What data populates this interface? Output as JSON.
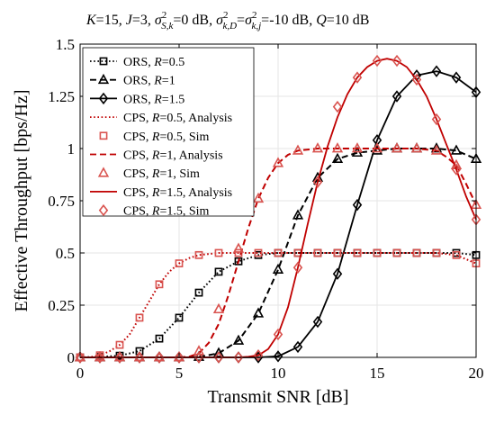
{
  "chart_data": {
    "type": "line",
    "title": "K=15, J=3, σ²S,k=0 dB, σ²k,D=σ²k,j=-10 dB, Q=10 dB",
    "title_parts": {
      "p1_italic": "K",
      "p1": "=15, ",
      "p2_italic": "J",
      "p2": "=3, ",
      "sigma": "σ",
      "sup2": "2",
      "sub1": "S,k",
      "p3": "=0 dB, ",
      "sub2": "k,D",
      "p4": "=",
      "sub3": "k,j",
      "p5": "=-10 dB, ",
      "p6_italic": "Q",
      "p6": "=10 dB"
    },
    "xlabel": "Transmit SNR [dB]",
    "ylabel": "Effective Throughput [bps/Hz]",
    "xlim": [
      0,
      20
    ],
    "ylim": [
      0,
      1.5
    ],
    "xticks": [
      "0",
      "5",
      "10",
      "15",
      "20"
    ],
    "yticks": [
      "0",
      "0.25",
      "0.5",
      "0.75",
      "1",
      "1.25",
      "1.5"
    ],
    "grid": true,
    "legend_position": "top-left",
    "series": [
      {
        "name": "ORS, R=0.5",
        "label_parts": [
          "ORS, ",
          "R",
          "=0.5"
        ],
        "color": "#000000",
        "line": "dotted",
        "marker": "square",
        "x": [
          0,
          1,
          2,
          3,
          4,
          5,
          6,
          7,
          8,
          9,
          10,
          11,
          12,
          13,
          14,
          15,
          16,
          17,
          18,
          19,
          20
        ],
        "y": [
          0,
          0.002,
          0.008,
          0.03,
          0.09,
          0.19,
          0.31,
          0.41,
          0.46,
          0.49,
          0.5,
          0.5,
          0.5,
          0.5,
          0.5,
          0.5,
          0.5,
          0.5,
          0.5,
          0.5,
          0.49
        ]
      },
      {
        "name": "ORS, R=1",
        "label_parts": [
          "ORS, ",
          "R",
          "=1"
        ],
        "color": "#000000",
        "line": "dashed",
        "marker": "triangle",
        "x": [
          0,
          1,
          2,
          3,
          4,
          5,
          6,
          7,
          8,
          9,
          10,
          11,
          12,
          13,
          14,
          15,
          16,
          17,
          18,
          19,
          20
        ],
        "y": [
          0,
          0,
          0,
          0,
          0,
          0,
          0.002,
          0.02,
          0.08,
          0.21,
          0.42,
          0.68,
          0.86,
          0.95,
          0.98,
          0.99,
          1,
          1,
          1,
          0.99,
          0.95
        ]
      },
      {
        "name": "ORS, R=1.5",
        "label_parts": [
          "ORS, ",
          "R",
          "=1.5"
        ],
        "color": "#000000",
        "line": "solid",
        "marker": "diamond",
        "x": [
          0,
          1,
          2,
          3,
          4,
          5,
          6,
          7,
          8,
          9,
          10,
          11,
          12,
          13,
          14,
          15,
          16,
          17,
          18,
          19,
          20
        ],
        "y": [
          0,
          0,
          0,
          0,
          0,
          0,
          0,
          0,
          0,
          0,
          0.005,
          0.05,
          0.17,
          0.4,
          0.73,
          1.04,
          1.25,
          1.35,
          1.37,
          1.34,
          1.27
        ]
      },
      {
        "name": "CPS, R=0.5, Analysis",
        "label_parts": [
          "CPS, ",
          "R",
          "=0.5, Analysis"
        ],
        "color": "#c00000",
        "line": "dotted",
        "marker": "none",
        "x": [
          0,
          0.5,
          1,
          1.5,
          2,
          2.5,
          3,
          3.5,
          4,
          4.5,
          5,
          5.5,
          6,
          7,
          8,
          9,
          10,
          11,
          12,
          13,
          14,
          15,
          16,
          17,
          18,
          19,
          19.5,
          20
        ],
        "y": [
          0,
          0.001,
          0.01,
          0.03,
          0.06,
          0.11,
          0.19,
          0.27,
          0.35,
          0.41,
          0.45,
          0.475,
          0.49,
          0.5,
          0.5,
          0.5,
          0.5,
          0.5,
          0.5,
          0.5,
          0.5,
          0.5,
          0.5,
          0.5,
          0.5,
          0.49,
          0.47,
          0.45
        ]
      },
      {
        "name": "CPS, R=0.5, Sim",
        "label_parts": [
          "CPS, ",
          "R",
          "=0.5, Sim"
        ],
        "color": "#d9534f",
        "line": "none",
        "marker": "square",
        "x": [
          0,
          1,
          2,
          3,
          4,
          5,
          6,
          7,
          8,
          9,
          10,
          11,
          12,
          13,
          14,
          15,
          16,
          17,
          18,
          19,
          20
        ],
        "y": [
          0,
          0.01,
          0.06,
          0.19,
          0.35,
          0.45,
          0.49,
          0.5,
          0.5,
          0.5,
          0.5,
          0.5,
          0.5,
          0.5,
          0.5,
          0.5,
          0.5,
          0.5,
          0.5,
          0.49,
          0.45
        ]
      },
      {
        "name": "CPS, R=1, Analysis",
        "label_parts": [
          "CPS, ",
          "R",
          "=1, Analysis"
        ],
        "color": "#c00000",
        "line": "dashed",
        "marker": "none",
        "x": [
          0,
          5,
          5.5,
          6,
          6.5,
          7,
          7.5,
          8,
          8.5,
          9,
          9.5,
          10,
          10.5,
          11,
          12,
          13,
          14,
          15,
          16,
          17,
          18,
          18.5,
          19,
          19.5,
          20
        ],
        "y": [
          0,
          0,
          0.003,
          0.02,
          0.07,
          0.16,
          0.3,
          0.46,
          0.62,
          0.76,
          0.86,
          0.93,
          0.97,
          0.99,
          1,
          1,
          1,
          1,
          1,
          1,
          0.99,
          0.96,
          0.92,
          0.83,
          0.73
        ]
      },
      {
        "name": "CPS, R=1, Sim",
        "label_parts": [
          "CPS, ",
          "R",
          "=1, Sim"
        ],
        "color": "#d9534f",
        "line": "none",
        "marker": "triangle",
        "x": [
          0,
          1,
          2,
          3,
          4,
          5,
          6,
          7,
          8,
          9,
          10,
          11,
          12,
          13,
          14,
          15,
          16,
          17,
          18,
          19,
          20
        ],
        "y": [
          0,
          0,
          0,
          0,
          0,
          0,
          0.03,
          0.23,
          0.52,
          0.76,
          0.93,
          0.99,
          1,
          1,
          1,
          1,
          1,
          1,
          0.99,
          0.92,
          0.73
        ]
      },
      {
        "name": "CPS, R=1.5, Analysis",
        "label_parts": [
          "CPS, ",
          "R",
          "=1.5, Analysis"
        ],
        "color": "#c00000",
        "line": "solid",
        "marker": "none",
        "x": [
          0,
          8,
          8.5,
          9,
          9.5,
          10,
          10.5,
          11,
          11.5,
          12,
          12.5,
          13,
          13.5,
          14,
          14.5,
          15,
          15.5,
          16,
          16.5,
          17,
          17.5,
          18,
          18.5,
          19,
          19.5,
          20
        ],
        "y": [
          0,
          0,
          0.003,
          0.01,
          0.04,
          0.11,
          0.24,
          0.43,
          0.64,
          0.84,
          1.01,
          1.15,
          1.26,
          1.34,
          1.39,
          1.42,
          1.43,
          1.42,
          1.39,
          1.33,
          1.25,
          1.14,
          1.02,
          0.9,
          0.77,
          0.66
        ]
      },
      {
        "name": "CPS, R=1.5, Sim",
        "label_parts": [
          "CPS, ",
          "R",
          "=1.5, Sim"
        ],
        "color": "#d9534f",
        "line": "none",
        "marker": "diamond",
        "x": [
          0,
          1,
          2,
          3,
          4,
          5,
          6,
          7,
          8,
          9,
          10,
          11,
          12,
          13,
          14,
          15,
          16,
          17,
          18,
          19,
          20
        ],
        "y": [
          0,
          0,
          0,
          0,
          0,
          0,
          0,
          0,
          0,
          0.01,
          0.11,
          0.43,
          0.84,
          1.2,
          1.34,
          1.42,
          1.42,
          1.33,
          1.14,
          0.9,
          0.66
        ]
      }
    ]
  }
}
